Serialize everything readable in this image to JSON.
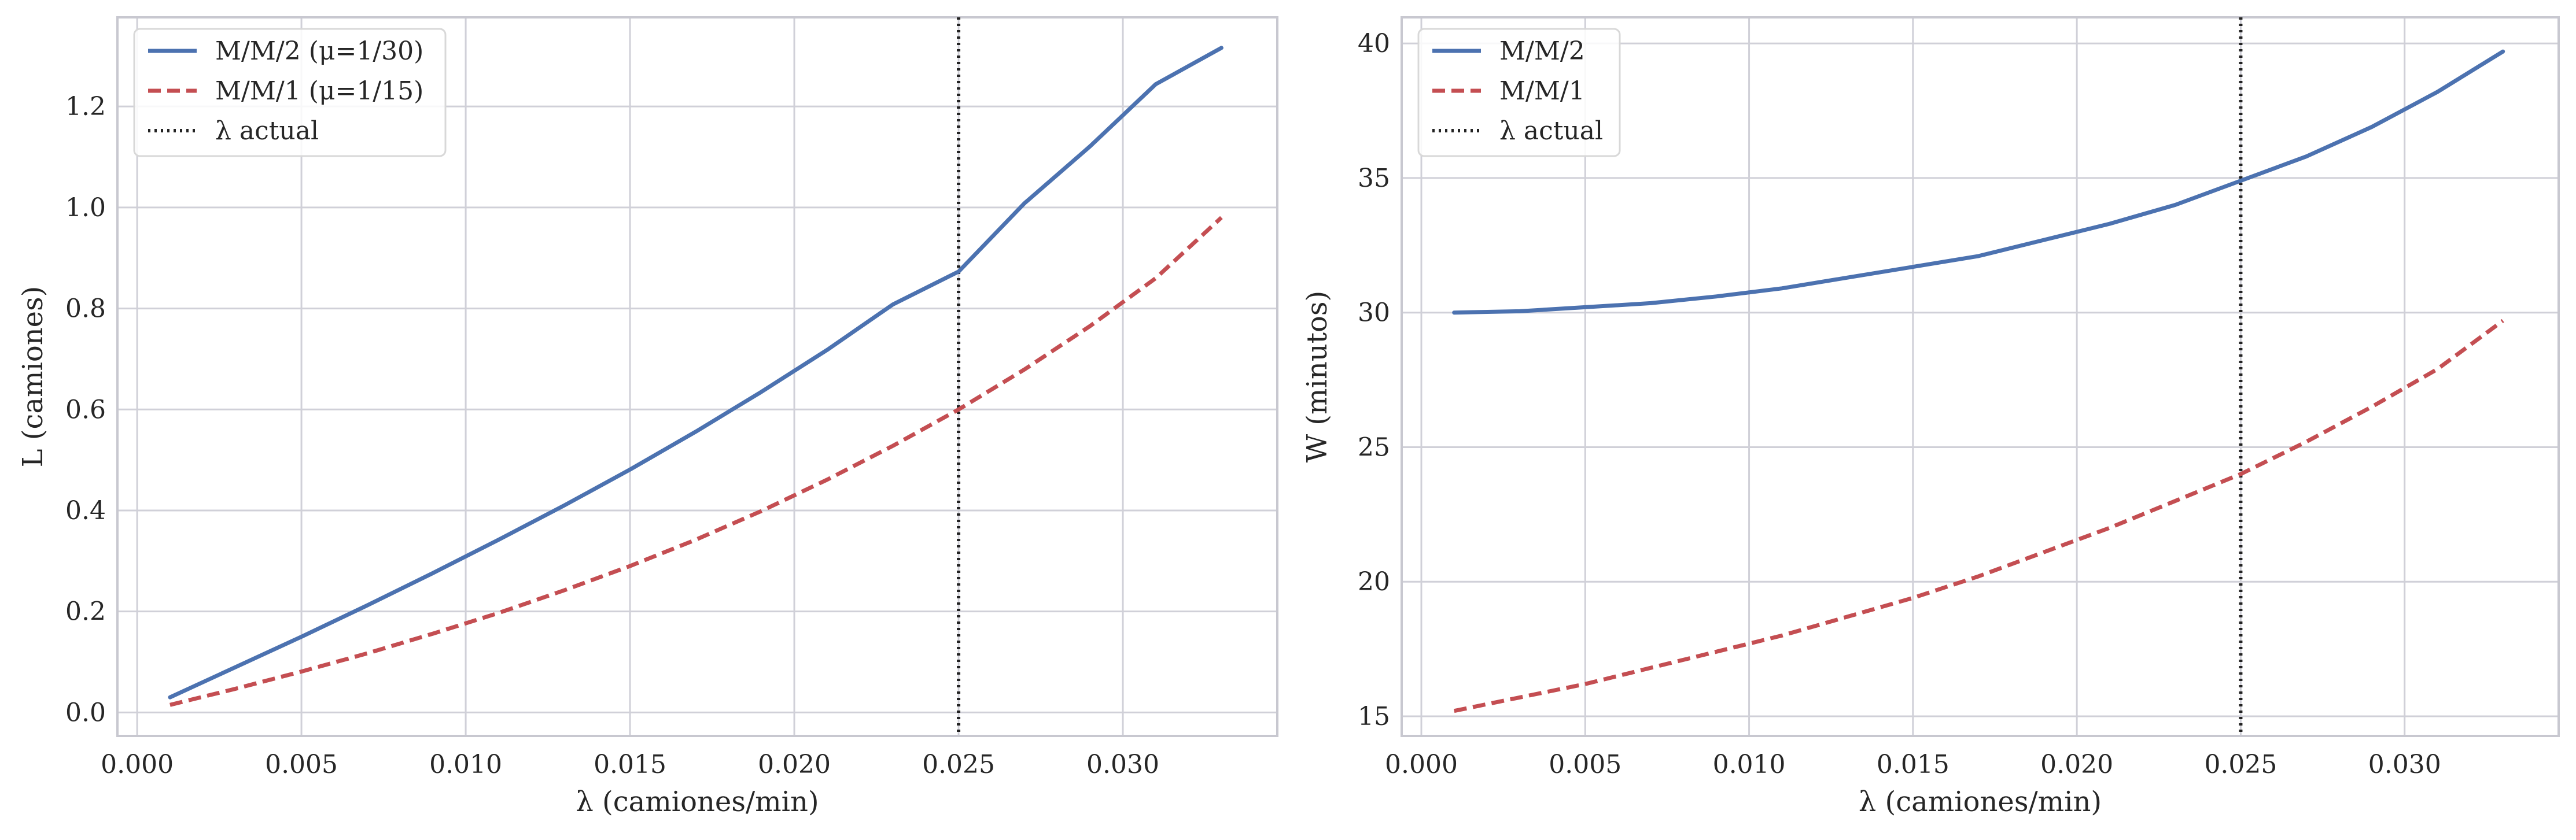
{
  "colors": {
    "series_mm2": "#4c72b0",
    "series_mm1": "#c44e52",
    "lambda_line": "#222222",
    "grid": "#d0d0d8",
    "spine": "#c8c8d0"
  },
  "chart_data": [
    {
      "type": "line",
      "xlabel": "λ (camiones/min)",
      "ylabel": "L (camiones)",
      "xlim": [
        -0.0006,
        0.0347
      ],
      "ylim": [
        -0.0465,
        1.3765
      ],
      "x_ticks": [
        {
          "value": 0.0,
          "label": "0.000"
        },
        {
          "value": 0.005,
          "label": "0.005"
        },
        {
          "value": 0.01,
          "label": "0.010"
        },
        {
          "value": 0.015,
          "label": "0.015"
        },
        {
          "value": 0.02,
          "label": "0.020"
        },
        {
          "value": 0.025,
          "label": "0.025"
        },
        {
          "value": 0.03,
          "label": "0.030"
        }
      ],
      "y_ticks": [
        {
          "value": 0.0,
          "label": "0.0"
        },
        {
          "value": 0.2,
          "label": "0.2"
        },
        {
          "value": 0.4,
          "label": "0.4"
        },
        {
          "value": 0.6,
          "label": "0.6"
        },
        {
          "value": 0.8,
          "label": "0.8"
        },
        {
          "value": 1.0,
          "label": "1.0"
        },
        {
          "value": 1.2,
          "label": "1.2"
        }
      ],
      "grid": true,
      "legend": {
        "placement": "upper-left",
        "entries": [
          {
            "label": "M/M/2 (μ=1/30)",
            "style": "solid",
            "color_key": "series_mm2"
          },
          {
            "label": "M/M/1 (μ=1/15)",
            "style": "dashed",
            "color_key": "series_mm1"
          },
          {
            "label": "λ actual",
            "style": "dotted",
            "color_key": "lambda_line"
          }
        ]
      },
      "vline": {
        "x": 0.025
      },
      "series": [
        {
          "name": "M/M/2 (μ=1/30)",
          "style": "solid",
          "color_key": "series_mm2",
          "x": [
            0.001,
            0.003,
            0.005,
            0.007,
            0.009,
            0.011,
            0.013,
            0.015,
            0.017,
            0.019,
            0.021,
            0.023,
            0.025,
            0.027,
            0.029,
            0.031,
            0.033
          ],
          "y": [
            0.03,
            0.09,
            0.15,
            0.212,
            0.276,
            0.342,
            0.41,
            0.481,
            0.556,
            0.635,
            0.718,
            0.808,
            0.873,
            1.008,
            1.121,
            1.244,
            1.316
          ]
        },
        {
          "name": "M/M/1 (μ=1/15)",
          "style": "dashed",
          "color_key": "series_mm1",
          "x": [
            0.001,
            0.003,
            0.005,
            0.007,
            0.009,
            0.011,
            0.013,
            0.015,
            0.017,
            0.019,
            0.021,
            0.023,
            0.025,
            0.027,
            0.029,
            0.031,
            0.033
          ],
          "y": [
            0.015,
            0.047,
            0.081,
            0.117,
            0.156,
            0.197,
            0.242,
            0.29,
            0.342,
            0.399,
            0.461,
            0.528,
            0.6,
            0.679,
            0.765,
            0.86,
            0.98
          ]
        }
      ]
    },
    {
      "type": "line",
      "xlabel": "λ (camiones/min)",
      "ylabel": "W (minutos)",
      "xlim": [
        -0.0006,
        0.0347
      ],
      "ylim": [
        14.27,
        40.97
      ],
      "x_ticks": [
        {
          "value": 0.0,
          "label": "0.000"
        },
        {
          "value": 0.005,
          "label": "0.005"
        },
        {
          "value": 0.01,
          "label": "0.010"
        },
        {
          "value": 0.015,
          "label": "0.015"
        },
        {
          "value": 0.02,
          "label": "0.020"
        },
        {
          "value": 0.025,
          "label": "0.025"
        },
        {
          "value": 0.03,
          "label": "0.030"
        }
      ],
      "y_ticks": [
        {
          "value": 15,
          "label": "15"
        },
        {
          "value": 20,
          "label": "20"
        },
        {
          "value": 25,
          "label": "25"
        },
        {
          "value": 30,
          "label": "30"
        },
        {
          "value": 35,
          "label": "35"
        },
        {
          "value": 40,
          "label": "40"
        }
      ],
      "grid": true,
      "legend": {
        "placement": "upper-left",
        "entries": [
          {
            "label": "M/M/2",
            "style": "solid",
            "color_key": "series_mm2"
          },
          {
            "label": "M/M/1",
            "style": "dashed",
            "color_key": "series_mm1"
          },
          {
            "label": "λ actual",
            "style": "dotted",
            "color_key": "lambda_line"
          }
        ]
      },
      "vline": {
        "x": 0.025
      },
      "series": [
        {
          "name": "M/M/2",
          "style": "solid",
          "color_key": "series_mm2",
          "x": [
            0.001,
            0.003,
            0.005,
            0.007,
            0.009,
            0.011,
            0.013,
            0.015,
            0.017,
            0.019,
            0.021,
            0.023,
            0.025,
            0.027,
            0.029,
            0.031,
            0.033
          ],
          "y": [
            30.0,
            30.05,
            30.2,
            30.35,
            30.6,
            30.9,
            31.3,
            31.7,
            32.1,
            32.7,
            33.3,
            34.0,
            34.9,
            35.8,
            36.9,
            38.2,
            39.7
          ]
        },
        {
          "name": "M/M/1",
          "style": "dashed",
          "color_key": "series_mm1",
          "x": [
            0.001,
            0.003,
            0.005,
            0.007,
            0.009,
            0.011,
            0.013,
            0.015,
            0.017,
            0.019,
            0.021,
            0.023,
            0.025,
            0.027,
            0.029,
            0.031,
            0.033
          ],
          "y": [
            15.2,
            15.7,
            16.2,
            16.8,
            17.4,
            18.0,
            18.7,
            19.4,
            20.2,
            21.1,
            22.0,
            23.0,
            24.0,
            25.2,
            26.5,
            27.9,
            29.7
          ]
        }
      ]
    }
  ]
}
